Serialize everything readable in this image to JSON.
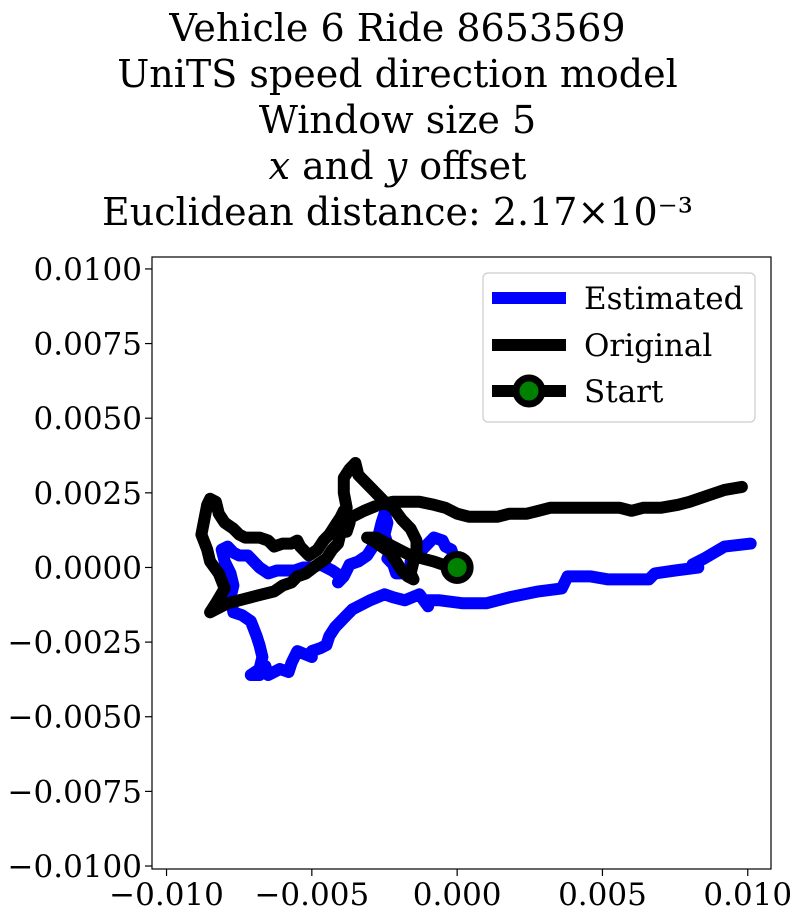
{
  "title_lines": [
    "Vehicle 6 Ride 8653569",
    "UniTS speed direction model",
    "Window size 5",
    "x and y offset",
    "Euclidean distance: 2.17×10⁻³"
  ],
  "chart_data": {
    "type": "line",
    "title": "Vehicle 6 Ride 8653569 UniTS speed direction model Window size 5 x and y offset Euclidean distance: 2.17×10⁻³",
    "xlabel": "",
    "ylabel": "",
    "xlim": [
      -0.0105,
      0.0108
    ],
    "ylim": [
      -0.0101,
      0.0104
    ],
    "x_ticks": [
      "−0.010",
      "−0.005",
      "0.000",
      "0.005",
      "0.010"
    ],
    "x_tick_values": [
      -0.01,
      -0.005,
      0.0,
      0.005,
      0.01
    ],
    "y_ticks": [
      "0.0100",
      "0.0075",
      "0.0050",
      "0.0025",
      "0.0000",
      "−0.0025",
      "−0.0050",
      "−0.0075",
      "−0.0100"
    ],
    "y_tick_values": [
      0.01,
      0.0075,
      0.005,
      0.0025,
      0.0,
      -0.0025,
      -0.005,
      -0.0075,
      -0.01
    ],
    "grid": false,
    "legend_position": "top-right",
    "series": [
      {
        "name": "Estimated",
        "color": "#0000ff",
        "points": [
          [
            0.0101,
            0.0008
          ],
          [
            0.0092,
            0.0007
          ],
          [
            0.0085,
            0.0003
          ],
          [
            0.0081,
            0.0001
          ],
          [
            0.0083,
            0.0
          ],
          [
            0.0075,
            -0.0001
          ],
          [
            0.0068,
            -0.0002
          ],
          [
            0.0066,
            -0.0004
          ],
          [
            0.0058,
            -0.0004
          ],
          [
            0.0052,
            -0.0004
          ],
          [
            0.0046,
            -0.0003
          ],
          [
            0.0038,
            -0.0003
          ],
          [
            0.0036,
            -0.0007
          ],
          [
            0.0028,
            -0.0008
          ],
          [
            0.0018,
            -0.001
          ],
          [
            0.001,
            -0.0012
          ],
          [
            0.0002,
            -0.0012
          ],
          [
            -0.0006,
            -0.0011
          ],
          [
            -0.001,
            -0.0011
          ],
          [
            -0.001,
            -0.0013
          ],
          [
            -0.0013,
            -0.0009
          ],
          [
            -0.0018,
            -0.0011
          ],
          [
            -0.0022,
            -0.001
          ],
          [
            -0.0025,
            -0.0009
          ],
          [
            -0.003,
            -0.0011
          ],
          [
            -0.0036,
            -0.0014
          ],
          [
            -0.0038,
            -0.0016
          ],
          [
            -0.0042,
            -0.002
          ],
          [
            -0.0044,
            -0.0023
          ],
          [
            -0.0045,
            -0.0026
          ],
          [
            -0.0047,
            -0.0027
          ],
          [
            -0.005,
            -0.0028
          ],
          [
            -0.005,
            -0.003
          ],
          [
            -0.0055,
            -0.0028
          ],
          [
            -0.0056,
            -0.003
          ],
          [
            -0.0057,
            -0.0032
          ],
          [
            -0.0058,
            -0.0035
          ],
          [
            -0.0061,
            -0.0034
          ],
          [
            -0.0063,
            -0.0035
          ],
          [
            -0.0065,
            -0.0036
          ],
          [
            -0.0066,
            -0.0033
          ],
          [
            -0.0068,
            -0.0036
          ],
          [
            -0.0071,
            -0.0036
          ],
          [
            -0.0068,
            -0.0034
          ],
          [
            -0.0067,
            -0.003
          ],
          [
            -0.0068,
            -0.0026
          ],
          [
            -0.0069,
            -0.0023
          ],
          [
            -0.0071,
            -0.0018
          ],
          [
            -0.0074,
            -0.0016
          ],
          [
            -0.0077,
            -0.0015
          ],
          [
            -0.0078,
            -0.001
          ],
          [
            -0.0077,
            -0.0006
          ],
          [
            -0.0078,
            -0.0002
          ],
          [
            -0.008,
            0.0002
          ],
          [
            -0.0081,
            0.0006
          ],
          [
            -0.0079,
            0.0007
          ],
          [
            -0.0077,
            0.0005
          ],
          [
            -0.0075,
            0.0004
          ],
          [
            -0.0072,
            0.0004
          ],
          [
            -0.007,
            0.0002
          ],
          [
            -0.0068,
            0.0
          ],
          [
            -0.0065,
            -0.0002
          ],
          [
            -0.0062,
            -0.0001
          ],
          [
            -0.0059,
            -0.0001
          ],
          [
            -0.0056,
            -0.0001
          ],
          [
            -0.0053,
            0.0
          ],
          [
            -0.005,
            0.0
          ],
          [
            -0.0047,
            0.0001
          ],
          [
            -0.0045,
            0.0
          ],
          [
            -0.0043,
            -0.0001
          ],
          [
            -0.004,
            -0.0003
          ],
          [
            -0.0041,
            -0.0005
          ],
          [
            -0.0039,
            -0.0003
          ],
          [
            -0.0038,
            -0.0001
          ],
          [
            -0.0037,
            0.0001
          ],
          [
            -0.0034,
            0.0002
          ],
          [
            -0.0031,
            0.0004
          ],
          [
            -0.0029,
            0.0007
          ],
          [
            -0.0027,
            0.0011
          ],
          [
            -0.0026,
            0.0015
          ],
          [
            -0.0025,
            0.0018
          ],
          [
            -0.0024,
            0.0015
          ],
          [
            -0.0025,
            0.0011
          ],
          [
            -0.0024,
            0.0008
          ],
          [
            -0.0023,
            0.0005
          ],
          [
            -0.0024,
            0.0003
          ],
          [
            -0.0022,
            0.0001
          ],
          [
            -0.0021,
            -0.0002
          ],
          [
            -0.0018,
            -0.0002
          ],
          [
            -0.0016,
            0.0
          ],
          [
            -0.0016,
            0.0002
          ],
          [
            -0.0014,
            0.0004
          ],
          [
            -0.0011,
            0.0007
          ],
          [
            -0.0008,
            0.001
          ],
          [
            -0.0005,
            0.0009
          ],
          [
            -0.0004,
            0.0007
          ],
          [
            -0.0002,
            0.0006
          ],
          [
            0.0,
            0.0
          ]
        ]
      },
      {
        "name": "Original",
        "color": "#000000",
        "points": [
          [
            0.0098,
            0.0027
          ],
          [
            0.0092,
            0.0026
          ],
          [
            0.0086,
            0.0024
          ],
          [
            0.008,
            0.0022
          ],
          [
            0.0076,
            0.0021
          ],
          [
            0.007,
            0.002
          ],
          [
            0.0064,
            0.002
          ],
          [
            0.006,
            0.0019
          ],
          [
            0.0056,
            0.002
          ],
          [
            0.0052,
            0.002
          ],
          [
            0.0046,
            0.002
          ],
          [
            0.004,
            0.002
          ],
          [
            0.0032,
            0.002
          ],
          [
            0.0028,
            0.0019
          ],
          [
            0.0024,
            0.0018
          ],
          [
            0.0018,
            0.0018
          ],
          [
            0.0014,
            0.0017
          ],
          [
            0.0008,
            0.0017
          ],
          [
            0.0004,
            0.0017
          ],
          [
            0.0,
            0.0018
          ],
          [
            -0.0004,
            0.002
          ],
          [
            -0.0008,
            0.0021
          ],
          [
            -0.0013,
            0.0022
          ],
          [
            -0.0018,
            0.0022
          ],
          [
            -0.0022,
            0.0022
          ],
          [
            -0.0027,
            0.0021
          ],
          [
            -0.0032,
            0.0019
          ],
          [
            -0.0036,
            0.0017
          ],
          [
            -0.0038,
            0.0015
          ],
          [
            -0.004,
            0.0012
          ],
          [
            -0.0041,
            0.0008
          ],
          [
            -0.0043,
            0.0006
          ],
          [
            -0.0045,
            0.0003
          ],
          [
            -0.0048,
            0.0001
          ],
          [
            -0.0052,
            -0.0002
          ],
          [
            -0.0055,
            -0.0003
          ],
          [
            -0.0057,
            -0.0005
          ],
          [
            -0.006,
            -0.0006
          ],
          [
            -0.0063,
            -0.0008
          ],
          [
            -0.0067,
            -0.0009
          ],
          [
            -0.0071,
            -0.001
          ],
          [
            -0.0075,
            -0.0011
          ],
          [
            -0.0079,
            -0.0012
          ],
          [
            -0.0083,
            -0.0014
          ],
          [
            -0.0085,
            -0.0015
          ],
          [
            -0.0083,
            -0.0012
          ],
          [
            -0.008,
            -0.0007
          ],
          [
            -0.0082,
            -0.0002
          ],
          [
            -0.0085,
            0.0002
          ],
          [
            -0.0086,
            0.0006
          ],
          [
            -0.0088,
            0.0011
          ],
          [
            -0.0087,
            0.0016
          ],
          [
            -0.0086,
            0.0021
          ],
          [
            -0.0085,
            0.0023
          ],
          [
            -0.0083,
            0.0022
          ],
          [
            -0.0082,
            0.0018
          ],
          [
            -0.008,
            0.0015
          ],
          [
            -0.0077,
            0.0013
          ],
          [
            -0.0075,
            0.0011
          ],
          [
            -0.0073,
            0.001
          ],
          [
            -0.0068,
            0.001
          ],
          [
            -0.0065,
            0.0009
          ],
          [
            -0.0063,
            0.0007
          ],
          [
            -0.006,
            0.0008
          ],
          [
            -0.0057,
            0.0008
          ],
          [
            -0.0055,
            0.0009
          ],
          [
            -0.0054,
            0.0007
          ],
          [
            -0.0052,
            0.0005
          ],
          [
            -0.0051,
            0.0004
          ],
          [
            -0.0048,
            0.0006
          ],
          [
            -0.0046,
            0.0009
          ],
          [
            -0.0044,
            0.0011
          ],
          [
            -0.0042,
            0.0014
          ],
          [
            -0.004,
            0.0017
          ],
          [
            -0.0039,
            0.0019
          ],
          [
            -0.0037,
            0.0015
          ],
          [
            -0.0038,
            0.0012
          ],
          [
            -0.0039,
            0.0016
          ],
          [
            -0.0038,
            0.002
          ],
          [
            -0.0039,
            0.0025
          ],
          [
            -0.0039,
            0.003
          ],
          [
            -0.0037,
            0.0033
          ],
          [
            -0.0035,
            0.0035
          ],
          [
            -0.0034,
            0.0031
          ],
          [
            -0.0031,
            0.0028
          ],
          [
            -0.0028,
            0.0025
          ],
          [
            -0.0025,
            0.0022
          ],
          [
            -0.0022,
            0.002
          ],
          [
            -0.0019,
            0.0016
          ],
          [
            -0.0016,
            0.0013
          ],
          [
            -0.0014,
            0.0009
          ],
          [
            -0.0014,
            0.0005
          ],
          [
            -0.0015,
            0.0002
          ],
          [
            -0.0016,
            -0.0002
          ],
          [
            -0.0015,
            -0.0004
          ],
          [
            -0.0017,
            -0.0003
          ],
          [
            -0.0019,
            -0.0001
          ],
          [
            -0.0021,
            0.0002
          ],
          [
            -0.0023,
            0.0005
          ],
          [
            -0.0026,
            0.0007
          ],
          [
            -0.0029,
            0.0009
          ],
          [
            -0.0031,
            0.001
          ],
          [
            -0.0028,
            0.001
          ],
          [
            -0.0024,
            0.0008
          ],
          [
            -0.002,
            0.0006
          ],
          [
            -0.0016,
            0.0004
          ],
          [
            -0.0012,
            0.0003
          ],
          [
            -0.0008,
            0.0002
          ],
          [
            -0.0005,
            0.0001
          ],
          [
            0.0,
            0.0
          ]
        ]
      }
    ],
    "start_marker": {
      "name": "Start",
      "x": 0.0,
      "y": 0.0,
      "face_color": "#008000",
      "edge_color": "#000000"
    }
  }
}
